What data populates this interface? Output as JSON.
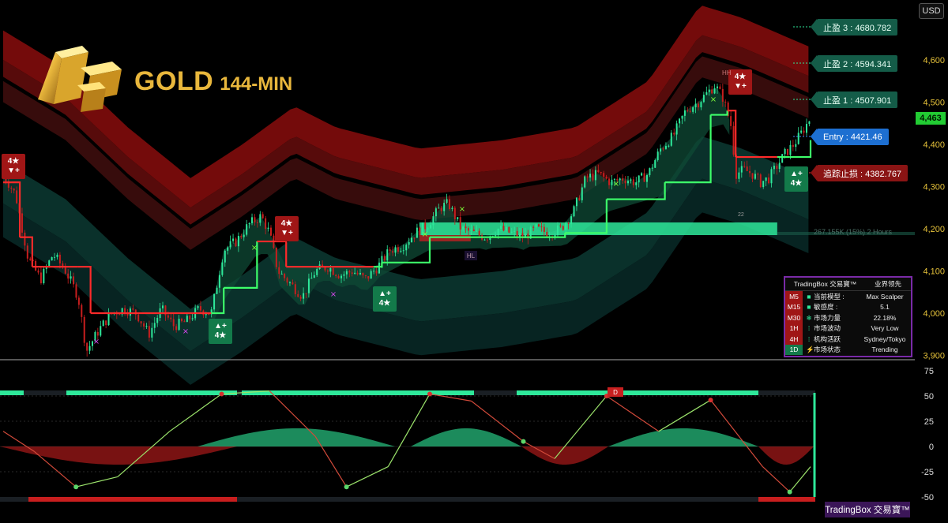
{
  "header": {
    "symbol": "GOLD",
    "timeframe": "144-MIN",
    "currency_button": "USD"
  },
  "price_axis": {
    "ticks": [
      "4,600",
      "4,500",
      "4,400",
      "4,300",
      "4,200",
      "4,100",
      "4,000",
      "3,900"
    ],
    "current_price": "4,463",
    "tick_color": "#e6c23a"
  },
  "levels": {
    "tp3": "止盈 3 : 4680.782",
    "tp2": "止盈 2 : 4594.341",
    "tp1": "止盈 1 : 4507.901",
    "entry": "Entry : 4421.46",
    "trailing_stop": "追踪止损 : 4382.767"
  },
  "zone_label": "267.155K (15%) 2 Hours",
  "markers": {
    "hh": "HH",
    "hl": "HL",
    "bar_count": "22",
    "divergence": "D"
  },
  "signals": [
    {
      "type": "sell",
      "label": "4★",
      "arrow": "▼+"
    },
    {
      "type": "sell",
      "label": "4★",
      "arrow": "▼+"
    },
    {
      "type": "sell",
      "label": "4★",
      "arrow": "▼+"
    },
    {
      "type": "buy",
      "label": "4★",
      "arrow": "▲+"
    },
    {
      "type": "buy",
      "label": "4★",
      "arrow": "▲+"
    },
    {
      "type": "buy",
      "label": "4★",
      "arrow": "▲+"
    }
  ],
  "info_panel": {
    "title": "TradingBox 交易寶™",
    "title_right": "业界领先",
    "rows": [
      {
        "tf": "M5",
        "tf_color": "#a01616",
        "icon": "■",
        "label": "当前模型 :",
        "value": "Max Scalper"
      },
      {
        "tf": "M15",
        "tf_color": "#a01616",
        "icon": "■",
        "label": "敏感度 :",
        "value": "5.1"
      },
      {
        "tf": "M30",
        "tf_color": "#a01616",
        "icon": "❄",
        "label": "市场力量",
        "value": "22.18%"
      },
      {
        "tf": "1H",
        "tf_color": "#a01616",
        "icon": "⁞",
        "label": "市场波动",
        "value": "Very Low"
      },
      {
        "tf": "4H",
        "tf_color": "#a01616",
        "icon": "⁞",
        "label": "机构活跃",
        "value": "Sydney/Tokyo"
      },
      {
        "tf": "1D",
        "tf_color": "#137a4a",
        "icon": "⚡",
        "label": "市场状态",
        "value": "Trending"
      }
    ]
  },
  "oscillator_axis": {
    "ticks": [
      "75",
      "50",
      "25",
      "0",
      "-25",
      "-50"
    ]
  },
  "brand": "TradingBox 交易寶™",
  "colors": {
    "bull": "#2ee89a",
    "bear": "#c81e1e",
    "trail_bull": "#3dff6a",
    "trail_bear": "#ff2a2a",
    "gold": "#e9b73c"
  },
  "chart_data": [
    {
      "type": "candlestick",
      "title": "GOLD 144-MIN",
      "ylim": [
        3900,
        4700
      ],
      "y_ticks": [
        3900,
        4000,
        4100,
        4200,
        4300,
        4400,
        4500,
        4600
      ],
      "close_path": [
        {
          "x": 0,
          "y": 4330
        },
        {
          "x": 6,
          "y": 4280
        },
        {
          "x": 12,
          "y": 4130
        },
        {
          "x": 18,
          "y": 4080
        },
        {
          "x": 24,
          "y": 4140
        },
        {
          "x": 30,
          "y": 4100
        },
        {
          "x": 36,
          "y": 4040
        },
        {
          "x": 40,
          "y": 3910
        },
        {
          "x": 46,
          "y": 3960
        },
        {
          "x": 52,
          "y": 4000
        },
        {
          "x": 58,
          "y": 4010
        },
        {
          "x": 64,
          "y": 4000
        },
        {
          "x": 70,
          "y": 3950
        },
        {
          "x": 76,
          "y": 4010
        },
        {
          "x": 82,
          "y": 3970
        },
        {
          "x": 88,
          "y": 3980
        },
        {
          "x": 94,
          "y": 4010
        },
        {
          "x": 100,
          "y": 4000
        },
        {
          "x": 106,
          "y": 4150
        },
        {
          "x": 112,
          "y": 4170
        },
        {
          "x": 118,
          "y": 4210
        },
        {
          "x": 124,
          "y": 4230
        },
        {
          "x": 128,
          "y": 4190
        },
        {
          "x": 132,
          "y": 4100
        },
        {
          "x": 138,
          "y": 4070
        },
        {
          "x": 144,
          "y": 4040
        },
        {
          "x": 150,
          "y": 4100
        },
        {
          "x": 156,
          "y": 4110
        },
        {
          "x": 162,
          "y": 4090
        },
        {
          "x": 168,
          "y": 4100
        },
        {
          "x": 174,
          "y": 4080
        },
        {
          "x": 180,
          "y": 4110
        },
        {
          "x": 186,
          "y": 4150
        },
        {
          "x": 192,
          "y": 4160
        },
        {
          "x": 198,
          "y": 4190
        },
        {
          "x": 204,
          "y": 4210
        },
        {
          "x": 210,
          "y": 4250
        },
        {
          "x": 214,
          "y": 4260
        },
        {
          "x": 220,
          "y": 4200
        },
        {
          "x": 226,
          "y": 4190
        },
        {
          "x": 232,
          "y": 4180
        },
        {
          "x": 238,
          "y": 4200
        },
        {
          "x": 244,
          "y": 4190
        },
        {
          "x": 250,
          "y": 4180
        },
        {
          "x": 256,
          "y": 4200
        },
        {
          "x": 262,
          "y": 4190
        },
        {
          "x": 268,
          "y": 4200
        },
        {
          "x": 274,
          "y": 4240
        },
        {
          "x": 280,
          "y": 4320
        },
        {
          "x": 286,
          "y": 4330
        },
        {
          "x": 292,
          "y": 4310
        },
        {
          "x": 298,
          "y": 4320
        },
        {
          "x": 304,
          "y": 4310
        },
        {
          "x": 310,
          "y": 4330
        },
        {
          "x": 316,
          "y": 4390
        },
        {
          "x": 322,
          "y": 4420
        },
        {
          "x": 328,
          "y": 4480
        },
        {
          "x": 334,
          "y": 4500
        },
        {
          "x": 338,
          "y": 4520
        },
        {
          "x": 342,
          "y": 4540
        },
        {
          "x": 346,
          "y": 4510
        },
        {
          "x": 350,
          "y": 4440
        },
        {
          "x": 352,
          "y": 4330
        },
        {
          "x": 356,
          "y": 4340
        },
        {
          "x": 360,
          "y": 4330
        },
        {
          "x": 364,
          "y": 4310
        },
        {
          "x": 368,
          "y": 4320
        },
        {
          "x": 372,
          "y": 4350
        },
        {
          "x": 376,
          "y": 4380
        },
        {
          "x": 380,
          "y": 4400
        },
        {
          "x": 384,
          "y": 4430
        },
        {
          "x": 388,
          "y": 4463
        }
      ],
      "trailing_stop": [
        {
          "x": 0,
          "y": 4310,
          "side": "bull"
        },
        {
          "x": 4,
          "y": 4310,
          "side": "bear"
        },
        {
          "x": 8,
          "y": 4180,
          "side": "bear"
        },
        {
          "x": 14,
          "y": 4110,
          "side": "bear"
        },
        {
          "x": 36,
          "y": 4110,
          "side": "bear"
        },
        {
          "x": 42,
          "y": 4000,
          "side": "bear"
        },
        {
          "x": 100,
          "y": 4000,
          "side": "bear"
        },
        {
          "x": 106,
          "y": 4060,
          "side": "bull"
        },
        {
          "x": 122,
          "y": 4170,
          "side": "bull"
        },
        {
          "x": 130,
          "y": 4170,
          "side": "bear"
        },
        {
          "x": 136,
          "y": 4110,
          "side": "bear"
        },
        {
          "x": 178,
          "y": 4110,
          "side": "bear"
        },
        {
          "x": 182,
          "y": 4120,
          "side": "bull"
        },
        {
          "x": 205,
          "y": 4180,
          "side": "bull"
        },
        {
          "x": 270,
          "y": 4190,
          "side": "bull"
        },
        {
          "x": 290,
          "y": 4270,
          "side": "bull"
        },
        {
          "x": 318,
          "y": 4310,
          "side": "bull"
        },
        {
          "x": 340,
          "y": 4470,
          "side": "bull"
        },
        {
          "x": 348,
          "y": 4480,
          "side": "bull"
        },
        {
          "x": 352,
          "y": 4370,
          "side": "bear"
        },
        {
          "x": 372,
          "y": 4370,
          "side": "bear"
        },
        {
          "x": 378,
          "y": 4370,
          "side": "bull"
        },
        {
          "x": 388,
          "y": 4410,
          "side": "bull"
        }
      ],
      "cloud_mid": [
        {
          "x": 0,
          "y": 4560
        },
        {
          "x": 30,
          "y": 4470
        },
        {
          "x": 60,
          "y": 4330
        },
        {
          "x": 90,
          "y": 4210
        },
        {
          "x": 115,
          "y": 4290
        },
        {
          "x": 140,
          "y": 4380
        },
        {
          "x": 160,
          "y": 4330
        },
        {
          "x": 200,
          "y": 4280
        },
        {
          "x": 240,
          "y": 4300
        },
        {
          "x": 275,
          "y": 4330
        },
        {
          "x": 310,
          "y": 4440
        },
        {
          "x": 335,
          "y": 4620
        },
        {
          "x": 355,
          "y": 4590
        },
        {
          "x": 388,
          "y": 4520
        }
      ],
      "demand_zone": {
        "from": 200,
        "to": 372,
        "y_low": 4185,
        "y_high": 4215
      }
    },
    {
      "type": "line",
      "title": "",
      "ylim": [
        -50,
        75
      ],
      "y_ticks": [
        -50,
        -25,
        0,
        25,
        50,
        75
      ],
      "series": [
        {
          "values": [
            {
              "x": 0,
              "y": 15
            },
            {
              "x": 15,
              "y": -5
            },
            {
              "x": 35,
              "y": -40
            },
            {
              "x": 55,
              "y": -30
            },
            {
              "x": 80,
              "y": 15
            },
            {
              "x": 105,
              "y": 52
            },
            {
              "x": 128,
              "y": 55
            },
            {
              "x": 150,
              "y": 10
            },
            {
              "x": 165,
              "y": -40
            },
            {
              "x": 185,
              "y": -20
            },
            {
              "x": 205,
              "y": 52
            },
            {
              "x": 225,
              "y": 45
            },
            {
              "x": 250,
              "y": 5
            },
            {
              "x": 265,
              "y": -12
            },
            {
              "x": 290,
              "y": 50
            },
            {
              "x": 315,
              "y": 15
            },
            {
              "x": 340,
              "y": 46
            },
            {
              "x": 365,
              "y": -20
            },
            {
              "x": 378,
              "y": -45
            },
            {
              "x": 388,
              "y": -20
            }
          ]
        }
      ]
    }
  ]
}
